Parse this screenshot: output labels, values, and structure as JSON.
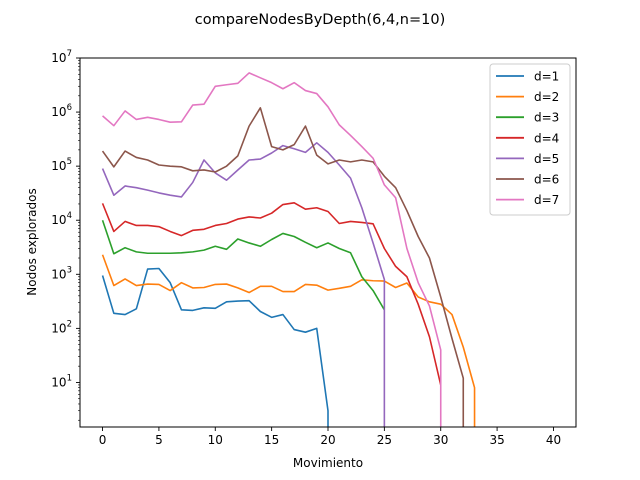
{
  "chart_data": {
    "type": "line",
    "title": "compareNodesByDepth(6,4,n=10)",
    "xlabel": "Movimiento",
    "ylabel": "Nodos explorados",
    "xlim": [
      -2,
      42
    ],
    "ylim": [
      1.5,
      10000000
    ],
    "yscale": "log",
    "xticks": [
      0,
      5,
      10,
      15,
      20,
      25,
      30,
      35,
      40
    ],
    "yticks": [
      {
        "value": 10,
        "base": "10",
        "exp": "1"
      },
      {
        "value": 100,
        "base": "10",
        "exp": "2"
      },
      {
        "value": 1000,
        "base": "10",
        "exp": "3"
      },
      {
        "value": 10000,
        "base": "10",
        "exp": "4"
      },
      {
        "value": 100000,
        "base": "10",
        "exp": "5"
      },
      {
        "value": 1000000,
        "base": "10",
        "exp": "6"
      },
      {
        "value": 10000000,
        "base": "10",
        "exp": "7"
      }
    ],
    "legend_position": "top-right",
    "grid": false,
    "series": [
      {
        "name": "d=1",
        "color": "#1f77b4",
        "x": [
          0,
          1,
          2,
          3,
          4,
          5,
          6,
          7,
          8,
          9,
          10,
          11,
          12,
          13,
          14,
          15,
          16,
          17,
          18,
          19,
          20,
          20
        ],
        "y": [
          950,
          190,
          180,
          230,
          1250,
          1280,
          700,
          220,
          215,
          240,
          235,
          310,
          320,
          325,
          205,
          160,
          180,
          95,
          85,
          100,
          3,
          1
        ]
      },
      {
        "name": "d=2",
        "color": "#ff7f0e",
        "x": [
          0,
          1,
          2,
          3,
          4,
          5,
          6,
          7,
          8,
          9,
          10,
          11,
          12,
          13,
          14,
          15,
          16,
          17,
          18,
          19,
          20,
          21,
          22,
          23,
          24,
          25,
          26,
          27,
          28,
          29,
          30,
          31,
          32,
          33,
          33
        ],
        "y": [
          2300,
          620,
          820,
          620,
          660,
          650,
          500,
          700,
          560,
          570,
          650,
          660,
          560,
          460,
          600,
          600,
          480,
          480,
          650,
          630,
          510,
          550,
          600,
          790,
          760,
          750,
          570,
          690,
          380,
          310,
          280,
          180,
          45,
          8,
          1
        ]
      },
      {
        "name": "d=3",
        "color": "#2ca02c",
        "x": [
          0,
          1,
          2,
          3,
          4,
          5,
          6,
          7,
          8,
          9,
          10,
          11,
          12,
          13,
          14,
          15,
          16,
          17,
          18,
          19,
          20,
          21,
          22,
          23,
          24,
          25
        ],
        "y": [
          10000,
          2400,
          3100,
          2600,
          2450,
          2450,
          2450,
          2500,
          2600,
          2800,
          3300,
          2900,
          4500,
          3800,
          3300,
          4400,
          5700,
          5000,
          3900,
          3100,
          3800,
          3000,
          2500,
          900,
          500,
          220
        ]
      },
      {
        "name": "d=4",
        "color": "#d62728",
        "x": [
          0,
          1,
          2,
          3,
          4,
          5,
          6,
          7,
          8,
          9,
          10,
          11,
          12,
          13,
          14,
          15,
          16,
          17,
          18,
          19,
          20,
          21,
          22,
          23,
          24,
          25,
          26,
          27,
          28,
          29,
          30
        ],
        "y": [
          20500,
          6200,
          9500,
          8000,
          8000,
          7600,
          6200,
          5200,
          6500,
          6800,
          8000,
          8700,
          10500,
          11500,
          11000,
          13500,
          19500,
          21000,
          16000,
          17000,
          14500,
          8700,
          9500,
          9100,
          8600,
          3000,
          1400,
          900,
          280,
          70,
          9
        ]
      },
      {
        "name": "d=5",
        "color": "#9467bd",
        "x": [
          0,
          1,
          2,
          3,
          4,
          5,
          6,
          7,
          8,
          9,
          10,
          11,
          12,
          13,
          14,
          15,
          16,
          17,
          18,
          19,
          20,
          21,
          22,
          23,
          24,
          25,
          25
        ],
        "y": [
          90000,
          29000,
          43000,
          40000,
          36000,
          32000,
          29000,
          27000,
          50000,
          130000,
          75000,
          55000,
          85000,
          130000,
          135000,
          175000,
          240000,
          210000,
          180000,
          270000,
          180000,
          105000,
          60000,
          17000,
          3800,
          800,
          1
        ]
      },
      {
        "name": "d=6",
        "color": "#8c564b",
        "x": [
          0,
          1,
          2,
          3,
          4,
          5,
          6,
          7,
          8,
          9,
          10,
          11,
          12,
          13,
          14,
          15,
          16,
          17,
          18,
          19,
          20,
          21,
          22,
          23,
          24,
          25,
          26,
          27,
          28,
          29,
          30,
          31,
          32,
          32
        ],
        "y": [
          190000,
          97000,
          190000,
          145000,
          130000,
          105000,
          100000,
          97000,
          82000,
          85000,
          78000,
          100000,
          155000,
          550000,
          1200000,
          230000,
          200000,
          250000,
          550000,
          160000,
          110000,
          130000,
          120000,
          130000,
          120000,
          65000,
          40000,
          15000,
          5000,
          2000,
          380,
          65,
          12,
          1
        ]
      },
      {
        "name": "d=7",
        "color": "#e377c2",
        "x": [
          0,
          1,
          2,
          3,
          4,
          5,
          6,
          7,
          8,
          9,
          10,
          11,
          12,
          13,
          14,
          15,
          16,
          17,
          18,
          19,
          20,
          21,
          22,
          23,
          24,
          25,
          26,
          27,
          28,
          29,
          30,
          30
        ],
        "y": [
          850000,
          560000,
          1050000,
          730000,
          800000,
          730000,
          650000,
          660000,
          1350000,
          1400000,
          3000000,
          3200000,
          3400000,
          5300000,
          4300000,
          3500000,
          2700000,
          3500000,
          2500000,
          2200000,
          1250000,
          580000,
          370000,
          230000,
          140000,
          45000,
          26000,
          3000,
          700,
          260,
          40,
          1
        ]
      }
    ]
  }
}
